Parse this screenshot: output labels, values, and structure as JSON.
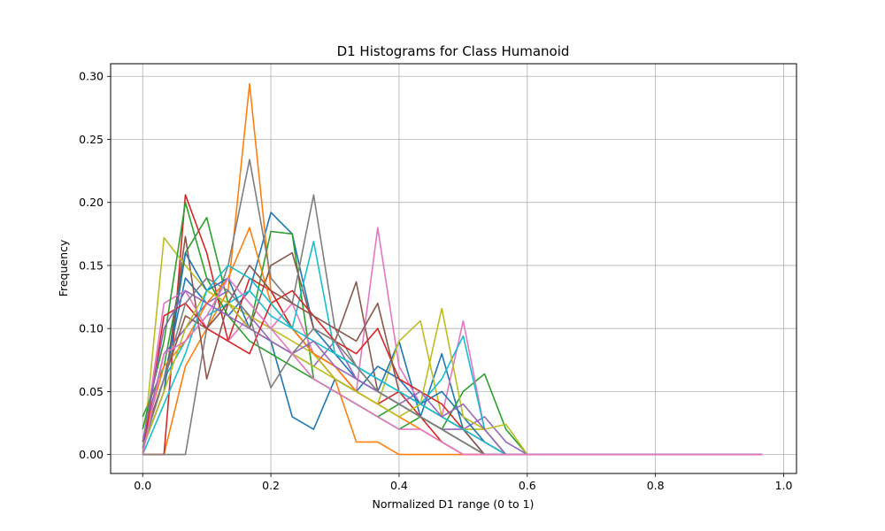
{
  "chart_data": {
    "type": "line",
    "title": "D1 Histograms for Class Humanoid",
    "xlabel": "Normalized D1 range (0 to 1)",
    "ylabel": "Frequency",
    "xlim": [
      -0.05,
      1.02
    ],
    "ylim": [
      -0.015,
      0.31
    ],
    "xticks": [
      "0.0",
      "0.2",
      "0.4",
      "0.6",
      "0.8",
      "1.0"
    ],
    "yticks": [
      "0.00",
      "0.05",
      "0.10",
      "0.15",
      "0.20",
      "0.25",
      "0.30"
    ],
    "grid": true,
    "legend": "none",
    "x": [
      0.0,
      0.0333,
      0.0667,
      0.1,
      0.1333,
      0.1667,
      0.2,
      0.2333,
      0.2667,
      0.3,
      0.3333,
      0.3667,
      0.4,
      0.4333,
      0.4667,
      0.5,
      0.5333,
      0.5667,
      0.6,
      0.6333,
      0.6667,
      0.7,
      0.7333,
      0.7667,
      0.8,
      0.8333,
      0.8667,
      0.9,
      0.9333,
      0.9667
    ],
    "series": [
      {
        "color": "#1f77b4",
        "values": [
          0.01,
          0.06,
          0.14,
          0.12,
          0.11,
          0.13,
          0.192,
          0.175,
          0.1,
          0.08,
          0.06,
          0.05,
          0.09,
          0.03,
          0.08,
          0.02,
          0.0,
          0,
          0,
          0,
          0,
          0,
          0,
          0,
          0,
          0,
          0,
          0,
          0,
          0
        ]
      },
      {
        "color": "#ff7f0e",
        "values": [
          0.0,
          0.0,
          0.07,
          0.1,
          0.13,
          0.294,
          0.13,
          0.1,
          0.08,
          0.06,
          0.01,
          0.01,
          0.0,
          0.0,
          0.0,
          0.0,
          0.0,
          0,
          0,
          0,
          0,
          0,
          0,
          0,
          0,
          0,
          0,
          0,
          0,
          0
        ]
      },
      {
        "color": "#2ca02c",
        "values": [
          0.03,
          0.07,
          0.16,
          0.188,
          0.12,
          0.1,
          0.177,
          0.175,
          0.06,
          0.05,
          0.04,
          0.03,
          0.02,
          0.03,
          0.02,
          0.05,
          0.064,
          0.02,
          0,
          0,
          0,
          0,
          0,
          0,
          0,
          0,
          0,
          0,
          0,
          0
        ]
      },
      {
        "color": "#d62728",
        "values": [
          0.0,
          0.0,
          0.206,
          0.16,
          0.09,
          0.14,
          0.13,
          0.1,
          0.08,
          0.07,
          0.05,
          0.04,
          0.05,
          0.03,
          0.01,
          0.0,
          0.0,
          0,
          0,
          0,
          0,
          0,
          0,
          0,
          0,
          0,
          0,
          0,
          0,
          0
        ]
      },
      {
        "color": "#9467bd",
        "values": [
          0.01,
          0.08,
          0.1,
          0.12,
          0.13,
          0.11,
          0.09,
          0.08,
          0.07,
          0.09,
          0.06,
          0.05,
          0.04,
          0.03,
          0.02,
          0.02,
          0.03,
          0.01,
          0,
          0,
          0,
          0,
          0,
          0,
          0,
          0,
          0,
          0,
          0,
          0
        ]
      },
      {
        "color": "#8c564b",
        "values": [
          0.005,
          0.05,
          0.173,
          0.06,
          0.12,
          0.1,
          0.15,
          0.16,
          0.1,
          0.09,
          0.137,
          0.05,
          0.04,
          0.03,
          0.02,
          0.01,
          0.0,
          0,
          0,
          0,
          0,
          0,
          0,
          0,
          0,
          0,
          0,
          0,
          0,
          0
        ]
      },
      {
        "color": "#e377c2",
        "values": [
          0.005,
          0.12,
          0.13,
          0.1,
          0.09,
          0.11,
          0.1,
          0.12,
          0.08,
          0.06,
          0.05,
          0.18,
          0.07,
          0.04,
          0.03,
          0.106,
          0.02,
          0.0,
          0,
          0,
          0,
          0,
          0,
          0,
          0,
          0,
          0,
          0,
          0,
          0
        ]
      },
      {
        "color": "#7f7f7f",
        "values": [
          0.0,
          0.0,
          0.0,
          0.1,
          0.15,
          0.234,
          0.14,
          0.12,
          0.206,
          0.1,
          0.07,
          0.05,
          0.04,
          0.03,
          0.02,
          0.01,
          0.0,
          0,
          0,
          0,
          0,
          0,
          0,
          0,
          0,
          0,
          0,
          0,
          0,
          0
        ]
      },
      {
        "color": "#bcbd22",
        "values": [
          0.0,
          0.172,
          0.15,
          0.13,
          0.12,
          0.11,
          0.1,
          0.09,
          0.08,
          0.06,
          0.05,
          0.04,
          0.09,
          0.106,
          0.03,
          0.02,
          0.02,
          0.024,
          0,
          0,
          0,
          0,
          0,
          0,
          0,
          0,
          0,
          0,
          0,
          0
        ]
      },
      {
        "color": "#17becf",
        "values": [
          0.01,
          0.06,
          0.09,
          0.11,
          0.12,
          0.13,
          0.11,
          0.1,
          0.169,
          0.08,
          0.07,
          0.06,
          0.05,
          0.04,
          0.06,
          0.094,
          0.02,
          0.0,
          0,
          0,
          0,
          0,
          0,
          0,
          0,
          0,
          0,
          0,
          0,
          0
        ]
      },
      {
        "color": "#1f77b4",
        "values": [
          0.005,
          0.05,
          0.16,
          0.13,
          0.14,
          0.1,
          0.09,
          0.03,
          0.02,
          0.06,
          0.05,
          0.07,
          0.06,
          0.04,
          0.05,
          0.03,
          0.01,
          0.0,
          0,
          0,
          0,
          0,
          0,
          0,
          0,
          0,
          0,
          0,
          0,
          0
        ]
      },
      {
        "color": "#ff7f0e",
        "values": [
          0.01,
          0.07,
          0.09,
          0.12,
          0.14,
          0.18,
          0.12,
          0.1,
          0.08,
          0.07,
          0.05,
          0.04,
          0.03,
          0.02,
          0.01,
          0.0,
          0.0,
          0,
          0,
          0,
          0,
          0,
          0,
          0,
          0,
          0,
          0,
          0,
          0,
          0
        ]
      },
      {
        "color": "#2ca02c",
        "values": [
          0.02,
          0.09,
          0.2,
          0.14,
          0.11,
          0.09,
          0.08,
          0.07,
          0.06,
          0.05,
          0.04,
          0.03,
          0.04,
          0.03,
          0.02,
          0.01,
          0.0,
          0,
          0,
          0,
          0,
          0,
          0,
          0,
          0,
          0,
          0,
          0,
          0,
          0
        ]
      },
      {
        "color": "#d62728",
        "values": [
          0.0,
          0.11,
          0.12,
          0.1,
          0.09,
          0.08,
          0.12,
          0.13,
          0.11,
          0.09,
          0.08,
          0.1,
          0.06,
          0.05,
          0.04,
          0.02,
          0.01,
          0.0,
          0,
          0,
          0,
          0,
          0,
          0,
          0,
          0,
          0,
          0,
          0,
          0
        ]
      },
      {
        "color": "#8c564b",
        "values": [
          0.01,
          0.06,
          0.11,
          0.1,
          0.12,
          0.15,
          0.13,
          0.12,
          0.11,
          0.1,
          0.09,
          0.12,
          0.05,
          0.04,
          0.03,
          0.02,
          0.0,
          0.0,
          0,
          0,
          0,
          0,
          0,
          0,
          0,
          0,
          0,
          0,
          0,
          0
        ]
      },
      {
        "color": "#bcbd22",
        "values": [
          0.005,
          0.05,
          0.1,
          0.13,
          0.12,
          0.1,
          0.09,
          0.08,
          0.07,
          0.06,
          0.05,
          0.04,
          0.03,
          0.04,
          0.116,
          0.03,
          0.02,
          0.0,
          0,
          0,
          0,
          0,
          0,
          0,
          0,
          0,
          0,
          0,
          0,
          0
        ]
      },
      {
        "color": "#17becf",
        "values": [
          0.0,
          0.04,
          0.08,
          0.13,
          0.15,
          0.14,
          0.12,
          0.1,
          0.09,
          0.08,
          0.07,
          0.06,
          0.05,
          0.04,
          0.03,
          0.02,
          0.01,
          0.0,
          0,
          0,
          0,
          0,
          0,
          0,
          0,
          0,
          0,
          0,
          0,
          0
        ]
      },
      {
        "color": "#9467bd",
        "values": [
          0.01,
          0.1,
          0.13,
          0.12,
          0.11,
          0.1,
          0.09,
          0.08,
          0.09,
          0.07,
          0.06,
          0.05,
          0.04,
          0.05,
          0.03,
          0.04,
          0.02,
          0.0,
          0,
          0,
          0,
          0,
          0,
          0,
          0,
          0,
          0,
          0,
          0,
          0
        ]
      },
      {
        "color": "#7f7f7f",
        "values": [
          0.005,
          0.06,
          0.12,
          0.14,
          0.13,
          0.11,
          0.053,
          0.08,
          0.1,
          0.09,
          0.07,
          0.05,
          0.04,
          0.03,
          0.02,
          0.01,
          0.0,
          0,
          0,
          0,
          0,
          0,
          0,
          0,
          0,
          0,
          0,
          0,
          0,
          0
        ]
      },
      {
        "color": "#e377c2",
        "values": [
          0.0,
          0.08,
          0.09,
          0.11,
          0.14,
          0.12,
          0.1,
          0.08,
          0.06,
          0.05,
          0.04,
          0.03,
          0.02,
          0.02,
          0.01,
          0.0,
          0.0,
          0,
          0,
          0,
          0,
          0,
          0,
          0,
          0,
          0,
          0,
          0,
          0,
          0
        ]
      }
    ]
  }
}
